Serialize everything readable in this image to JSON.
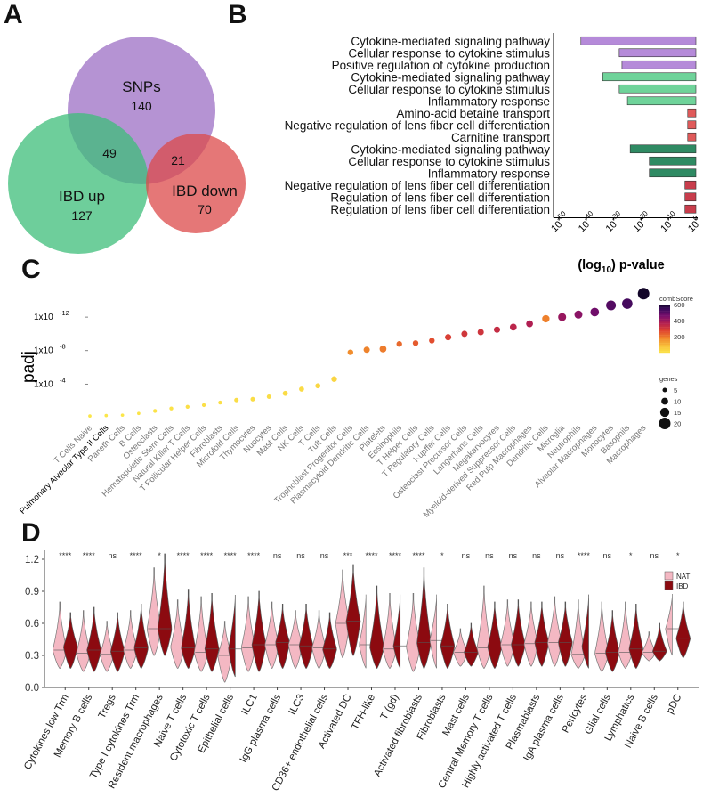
{
  "panels": {
    "a": "A",
    "b": "B",
    "c": "C",
    "d": "D"
  },
  "venn": {
    "sets": [
      {
        "name": "SNPs",
        "count": "140",
        "color": "#9c6fc4"
      },
      {
        "name": "IBD up",
        "count": "127",
        "color": "#3dbd7a"
      },
      {
        "name": "IBD down",
        "count": "70",
        "color": "#dc4a4a"
      }
    ],
    "intersections": [
      {
        "sets": [
          "SNPs",
          "IBD up"
        ],
        "count": "49"
      },
      {
        "sets": [
          "SNPs",
          "IBD down"
        ],
        "count": "21"
      }
    ]
  },
  "chart_data": [
    {
      "panel": "B",
      "type": "bar",
      "orientation": "horizontal",
      "xlabel_main": "(log",
      "xlabel_sub": "10",
      "xlabel_tail": ") p-value",
      "x_ticks": [
        {
          "base": "10",
          "exp": "-50",
          "value": -50
        },
        {
          "base": "10",
          "exp": "-40",
          "value": -40
        },
        {
          "base": "10",
          "exp": "-30",
          "value": -30
        },
        {
          "base": "10",
          "exp": "-20",
          "value": -20
        },
        {
          "base": "10",
          "exp": "-10",
          "value": -10
        },
        {
          "base": "10",
          "exp": "0",
          "value": 0
        }
      ],
      "xlim": [
        -52,
        0
      ],
      "categories": [
        "Cytokine-mediated signaling pathway",
        "Cellular response to cytokine stimulus",
        "Positive regulation of cytokine production",
        "Cytokine-mediated signaling pathway",
        "Cellular response to cytokine stimulus",
        "Inflammatory response",
        "Amino-acid betaine transport",
        "Negative regulation of lens fiber cell differentiation",
        "Carnitine transport",
        "Cytokine-mediated signaling pathway",
        "Cellular response to cytokine stimulus",
        "Inflammatory response",
        "Negative regulation of lens fiber cell differentiation",
        "Regulation of lens fiber cell differentiation",
        "Regulation of lens fiber cell differentiation"
      ],
      "values": [
        -42,
        -28,
        -27,
        -34,
        -28,
        -25,
        -3,
        -3,
        -3,
        -24,
        -17,
        -17,
        -4,
        -4,
        -4
      ],
      "groups": [
        "SNPs",
        "SNPs",
        "SNPs",
        "IBD up",
        "IBD up",
        "IBD up",
        "IBD down",
        "IBD down",
        "IBD down",
        "SNPs & IBD up",
        "SNPs & IBD up",
        "SNPs & IBD up",
        "SNPs & IBD down",
        "SNPs & IBD down",
        "SNPs & IBD down"
      ],
      "colors": {
        "SNPs": "#b58ad9",
        "IBD up": "#6fd39a",
        "IBD down": "#e05a5a",
        "SNPs & IBD up": "#2f8a63",
        "SNPs & IBD down": "#c83d4c"
      }
    },
    {
      "panel": "C",
      "type": "scatter",
      "ylabel": "padj",
      "y_ticks": [
        {
          "base": "1x10",
          "exp": "-12",
          "value": 12
        },
        {
          "base": "1x10",
          "exp": "-8",
          "value": 8
        },
        {
          "base": "1x10",
          "exp": "-4",
          "value": 4
        }
      ],
      "ylim_neglog10": [
        0,
        15.2
      ],
      "categories": [
        "T Cells Naive",
        "Pulmonary Alveolar Type II Cells",
        "Paneth Cells",
        "B Cells",
        "Osteoclasts",
        "Hematopoietic Stem Cells",
        "Natural Killer T Cells",
        "T Follicular Helper Cells",
        "Fibroblasts",
        "Microfold Cells",
        "Thymocytes",
        "Nuocytes",
        "Mast Cells",
        "NK Cells",
        "T Cells",
        "Tuft Cells",
        "Trophoblast Progenitor Cells",
        "Plasmacytoid Dendritic Cells",
        "Platelets",
        "Eosinophils",
        "T Helper Cells",
        "T Regulatory Cells",
        "Kupffer Cells",
        "Osteoclast Precursor Cells",
        "Langerhans Cells",
        "Megakaryocytes",
        "Myeloid-derived Suppressor Cells",
        "Red Pulp Macrophages",
        "Dendritic Cells",
        "Microglia",
        "Neutrophils",
        "Alveolar Macrophages",
        "Monocytes",
        "Basophils",
        "Macrophages"
      ],
      "neglog10_padj": [
        0.2,
        0.25,
        0.3,
        0.5,
        0.8,
        1.1,
        1.3,
        1.5,
        1.8,
        2.1,
        2.2,
        2.5,
        2.9,
        3.4,
        3.8,
        4.6,
        7.8,
        8.1,
        8.2,
        8.8,
        8.9,
        9.2,
        9.6,
        10.0,
        10.2,
        10.5,
        10.8,
        11.2,
        11.8,
        12.0,
        12.3,
        12.6,
        13.4,
        13.6,
        14.8
      ],
      "combScore": [
        5,
        5,
        5,
        10,
        15,
        15,
        20,
        20,
        20,
        25,
        25,
        25,
        30,
        30,
        40,
        45,
        180,
        195,
        205,
        230,
        250,
        270,
        295,
        315,
        320,
        340,
        360,
        380,
        200,
        420,
        440,
        480,
        520,
        540,
        610
      ],
      "genes": [
        2,
        2,
        2,
        2,
        3,
        3,
        3,
        3,
        3,
        4,
        4,
        4,
        5,
        5,
        5,
        6,
        6,
        7,
        8,
        6,
        6,
        6,
        7,
        7,
        7,
        7,
        8,
        8,
        9,
        10,
        10,
        11,
        13,
        14,
        16
      ],
      "legend_color_title": "combScore",
      "legend_color_ticks": [
        "600",
        "400",
        "200"
      ],
      "legend_size_title": "genes",
      "legend_size_ticks": [
        "5",
        "10",
        "15",
        "20"
      ]
    },
    {
      "panel": "D",
      "type": "violin",
      "ylim": [
        0,
        1.25
      ],
      "y_ticks": [
        "0.0",
        "0.3",
        "0.6",
        "0.9",
        "1.2"
      ],
      "legend": [
        {
          "name": "NAT",
          "color": "#f4b8c3"
        },
        {
          "name": "IBD",
          "color": "#8c0a10"
        }
      ],
      "categories": [
        "Cytokines low Trm",
        "Memory B cells",
        "Tregs",
        "Type I cytokines Trm",
        "Resident macrophages",
        "Naive T cells",
        "Cytotoxic T cells",
        "Epithelial cells",
        "ILC1",
        "IgG plasma cells",
        "ILC3",
        "CD36+ endothelial cells",
        "Activated DC",
        "TFH-like",
        "T (gd)",
        "Activated fibroblasts",
        "Fibroblasts",
        "Mast cells",
        "Central Memory T cells",
        "Highly activated T cells",
        "Plasmablasts",
        "IgA plasma cells",
        "Pericytes",
        "Glial cells",
        "Lymphatics",
        "Naive B cells",
        "pDC"
      ],
      "significance": [
        "****",
        "****",
        "ns",
        "****",
        "*",
        "****",
        "****",
        "****",
        "****",
        "ns",
        "ns",
        "ns",
        "***",
        "****",
        "****",
        "****",
        "*",
        "ns",
        "ns",
        "ns",
        "ns",
        "ns",
        "****",
        "ns",
        "*",
        "ns",
        "*"
      ],
      "nat_median": [
        0.35,
        0.32,
        0.31,
        0.35,
        0.55,
        0.38,
        0.33,
        0.3,
        0.37,
        0.4,
        0.4,
        0.37,
        0.6,
        0.4,
        0.36,
        0.38,
        0.44,
        0.33,
        0.37,
        0.4,
        0.41,
        0.42,
        0.31,
        0.32,
        0.33,
        0.33,
        0.55
      ],
      "ibd_median": [
        0.38,
        0.35,
        0.34,
        0.37,
        0.55,
        0.37,
        0.36,
        0.36,
        0.4,
        0.42,
        0.39,
        0.36,
        0.62,
        0.38,
        0.39,
        0.42,
        0.39,
        0.33,
        0.38,
        0.4,
        0.42,
        0.42,
        0.38,
        0.33,
        0.36,
        0.34,
        0.46
      ],
      "nat_max": [
        0.8,
        0.72,
        0.62,
        0.72,
        1.12,
        0.82,
        0.85,
        0.62,
        0.85,
        0.8,
        0.72,
        0.72,
        1.1,
        0.9,
        0.88,
        0.88,
        0.9,
        0.55,
        0.95,
        0.82,
        0.8,
        0.85,
        0.82,
        0.8,
        0.8,
        0.52,
        0.9
      ],
      "ibd_max": [
        0.7,
        0.75,
        0.7,
        0.78,
        1.25,
        0.92,
        0.88,
        0.9,
        0.9,
        0.78,
        0.78,
        0.7,
        1.15,
        0.95,
        0.9,
        1.12,
        0.78,
        0.6,
        0.8,
        0.82,
        0.8,
        0.8,
        0.9,
        0.72,
        0.78,
        0.6,
        0.8
      ],
      "nat_min": [
        0.18,
        0.15,
        0.15,
        0.18,
        0.3,
        0.18,
        0.15,
        0.05,
        0.15,
        0.18,
        0.18,
        0.18,
        0.28,
        0.18,
        0.18,
        0.15,
        0.18,
        0.2,
        0.18,
        0.2,
        0.2,
        0.2,
        0.18,
        0.15,
        0.18,
        0.25,
        0.3
      ],
      "ibd_min": [
        0.18,
        0.15,
        0.15,
        0.18,
        0.3,
        0.18,
        0.15,
        0.1,
        0.15,
        0.18,
        0.18,
        0.18,
        0.3,
        0.18,
        0.18,
        0.18,
        0.18,
        0.2,
        0.18,
        0.2,
        0.2,
        0.2,
        0.18,
        0.15,
        0.18,
        0.25,
        0.28
      ]
    }
  ]
}
